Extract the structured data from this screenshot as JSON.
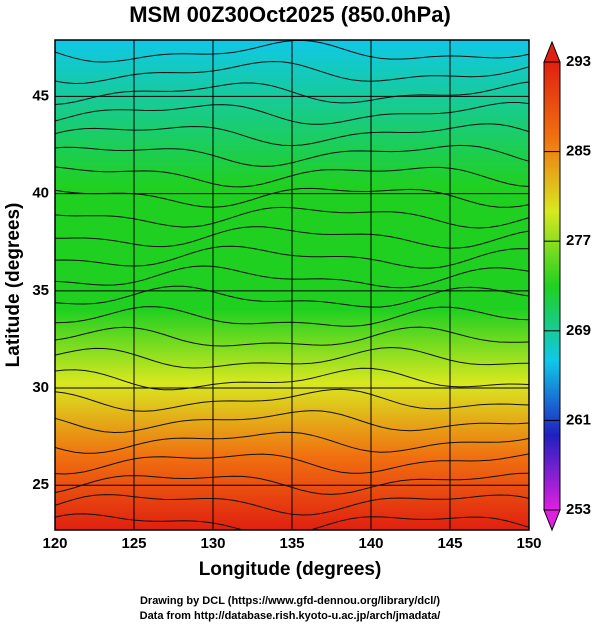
{
  "chart_data": {
    "type": "map",
    "title": "MSM 00Z30Oct2025 (850.0hPa)",
    "x_label": "Longitude (degrees)",
    "y_label": "Latitude  (degrees)",
    "xlim": [
      120,
      150
    ],
    "xticks": [
      120,
      125,
      130,
      135,
      140,
      145,
      150
    ],
    "ylim": [
      22.7,
      47.9
    ],
    "yticks": [
      25,
      30,
      35,
      40,
      45
    ],
    "grid": true,
    "colorbar": {
      "lim": [
        253,
        293
      ],
      "ticks": [
        253,
        261,
        269,
        277,
        285,
        293
      ],
      "colors": [
        "#e020e0",
        "#2020c0",
        "#10c8e8",
        "#20d020",
        "#d8e820",
        "#f07010",
        "#e02010"
      ]
    },
    "credits": [
      "Drawing by DCL (https://www.gfd-dennou.org/library/dcl/)",
      "Data from http://database.rish.kyoto-u.ac.jp/arch/jmadata/"
    ]
  }
}
